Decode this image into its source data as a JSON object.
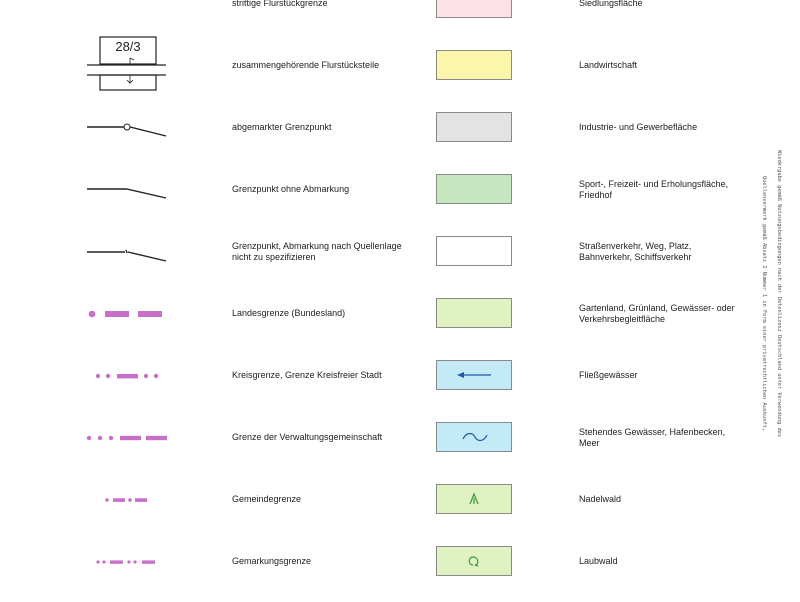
{
  "parcel_number": "28/3",
  "colors": {
    "line": "#222222",
    "boundary": "#c86fc9",
    "settlement": "#fde3e7",
    "agriculture": "#fbf6a9",
    "industry": "#e3e3e3",
    "sport": "#c6e6c0",
    "traffic": "#ffffff",
    "garden": "#e0f1c2",
    "water": "#c5eaf7",
    "forest": "#e0f1c2",
    "water_symbol": "#1e5aa6",
    "tree_symbol": "#3a9a3a"
  },
  "rows": [
    {
      "label": "strittige Flurstückgrenze",
      "area": "Siedlungsfläche",
      "symbol": "disputed-boundary"
    },
    {
      "label": "zusammengehörende Flurstücksteile",
      "area": "Landwirtschaft",
      "symbol": "parcel-parts"
    },
    {
      "label": "abgemarkter Grenzpunkt",
      "area": "Industrie- und Gewerbefläche",
      "symbol": "marked-point"
    },
    {
      "label": "Grenzpunkt ohne Abmarkung",
      "area": "Sport-, Freizeit- und Erholungsfläche, Friedhof",
      "symbol": "unmarked-point"
    },
    {
      "label": "Grenzpunkt, Abmarkung nach Quellenlage nicht zu spezifizieren",
      "area": "Straßenverkehr,  Weg,  Platz, Bahnverkehr, Schiffsverkehr",
      "symbol": "unspecified-point"
    },
    {
      "label": "Landesgrenze (Bundesland)",
      "area": "Gartenland, Grünland, Gewässer- oder Verkehrsbegleitfläche",
      "symbol": "state-border"
    },
    {
      "label": "Kreisgrenze, Grenze Kreisfreier Stadt",
      "area": "Fließgewässer",
      "symbol": "district-border"
    },
    {
      "label": "Grenze der Verwaltungsgemeinschaft",
      "area": "Stehendes Gewässer, Hafenbecken, Meer",
      "symbol": "admin-border"
    },
    {
      "label": "Gemeindegrenze",
      "area": "Nadelwald",
      "symbol": "municipal-border"
    },
    {
      "label": "Gemarkungsgrenze",
      "area": "Laubwald",
      "symbol": "cadastral-district-border"
    }
  ],
  "side_text": [
    "Quellenvermerk gemäß Absatz 2 Nummer 1 in Form einer privatrechtlichen Auskunft,",
    "Wiedergabe gemäß Nutzungsbedingungen nach der Datenlizenz Deutschland unter Verwendung des"
  ]
}
